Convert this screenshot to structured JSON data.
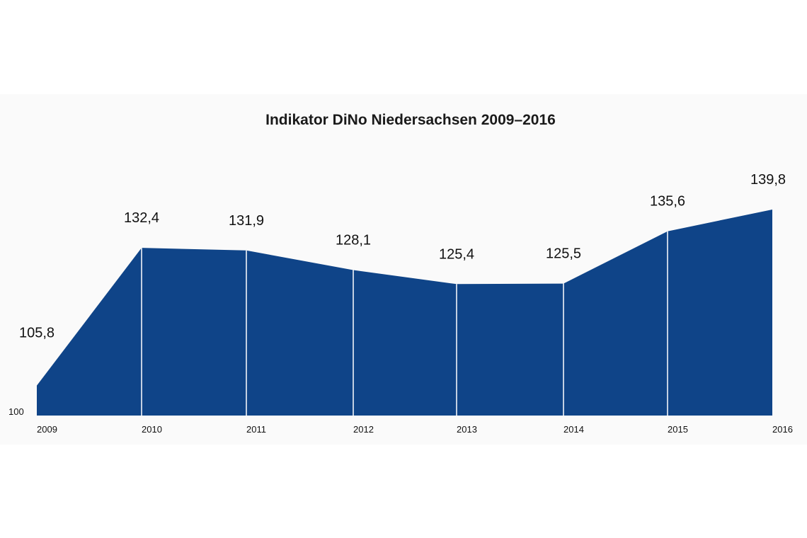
{
  "chart_data": {
    "type": "area",
    "title": "Indikator DiNo Niedersachsen 2009–2016",
    "x": [
      "2009",
      "2010",
      "2011",
      "2012",
      "2013",
      "2014",
      "2015",
      "2016"
    ],
    "values": [
      105.8,
      132.4,
      131.9,
      128.1,
      125.4,
      125.5,
      135.6,
      139.8
    ],
    "value_labels": [
      "105,8",
      "132,4",
      "131,9",
      "128,1",
      "125,4",
      "125,5",
      "135,6",
      "139,8"
    ],
    "y_baseline_label": "100",
    "ylim": [
      100,
      139.8
    ],
    "grid": false,
    "legend": "none",
    "colors": {
      "area": "#0f4488",
      "separator": "#ffffff",
      "background": "#fafafa"
    }
  }
}
